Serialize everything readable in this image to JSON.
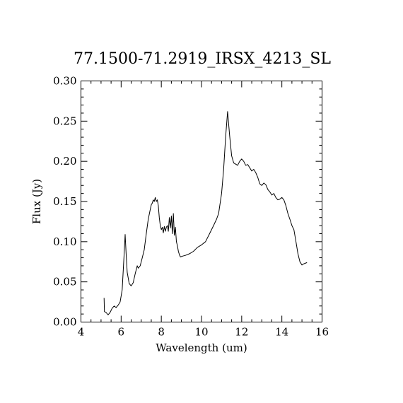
{
  "chart_data": {
    "type": "line",
    "title": "77.1500-71.2919_IRSX_4213_SL",
    "xlabel": "Wavelength (um)",
    "ylabel": "Flux (Jy)",
    "xlim": [
      4,
      16
    ],
    "ylim": [
      0,
      0.3
    ],
    "xticks": [
      4,
      6,
      8,
      10,
      12,
      14,
      16
    ],
    "xtick_labels": [
      "4",
      "6",
      "8",
      "10",
      "12",
      "14",
      "16"
    ],
    "yticks": [
      0.0,
      0.05,
      0.1,
      0.15,
      0.2,
      0.25,
      0.3
    ],
    "ytick_labels": [
      "0.00",
      "0.05",
      "0.10",
      "0.15",
      "0.20",
      "0.25",
      "0.30"
    ],
    "grid": false,
    "series": [
      {
        "x": [
          5.15,
          5.17,
          5.25,
          5.35,
          5.45,
          5.55,
          5.65,
          5.75,
          5.85,
          5.95,
          6.05,
          6.15,
          6.2,
          6.25,
          6.3,
          6.4,
          6.5,
          6.6,
          6.7,
          6.8,
          6.85,
          6.95,
          7.05,
          7.15,
          7.25,
          7.35,
          7.45,
          7.5,
          7.55,
          7.6,
          7.65,
          7.7,
          7.75,
          7.8,
          7.85,
          7.9,
          7.95,
          8.0,
          8.05,
          8.1,
          8.15,
          8.2,
          8.25,
          8.3,
          8.35,
          8.4,
          8.45,
          8.5,
          8.55,
          8.6,
          8.65,
          8.7,
          8.75,
          8.8,
          8.85,
          8.9,
          8.95,
          9.05,
          9.2,
          9.4,
          9.6,
          9.8,
          10.0,
          10.2,
          10.4,
          10.6,
          10.75,
          10.85,
          11.0,
          11.1,
          11.2,
          11.3,
          11.4,
          11.5,
          11.6,
          11.8,
          11.9,
          12.0,
          12.1,
          12.2,
          12.3,
          12.4,
          12.5,
          12.6,
          12.7,
          12.8,
          12.9,
          13.0,
          13.1,
          13.2,
          13.3,
          13.4,
          13.5,
          13.6,
          13.7,
          13.8,
          13.9,
          14.0,
          14.1,
          14.2,
          14.3,
          14.4,
          14.5,
          14.6,
          14.7,
          14.8,
          14.9,
          15.0,
          15.05,
          15.15,
          15.25
        ],
        "y": [
          0.03,
          0.013,
          0.012,
          0.009,
          0.012,
          0.017,
          0.02,
          0.018,
          0.021,
          0.025,
          0.04,
          0.085,
          0.109,
          0.085,
          0.062,
          0.048,
          0.045,
          0.049,
          0.06,
          0.07,
          0.067,
          0.07,
          0.08,
          0.09,
          0.11,
          0.128,
          0.14,
          0.146,
          0.148,
          0.152,
          0.15,
          0.155,
          0.15,
          0.152,
          0.145,
          0.13,
          0.12,
          0.115,
          0.118,
          0.111,
          0.119,
          0.113,
          0.118,
          0.12,
          0.113,
          0.13,
          0.117,
          0.132,
          0.11,
          0.135,
          0.108,
          0.118,
          0.1,
          0.095,
          0.088,
          0.084,
          0.081,
          0.082,
          0.083,
          0.085,
          0.088,
          0.093,
          0.096,
          0.1,
          0.11,
          0.12,
          0.128,
          0.135,
          0.16,
          0.19,
          0.23,
          0.262,
          0.232,
          0.207,
          0.198,
          0.195,
          0.2,
          0.203,
          0.2,
          0.195,
          0.196,
          0.192,
          0.188,
          0.19,
          0.186,
          0.18,
          0.172,
          0.17,
          0.173,
          0.171,
          0.165,
          0.162,
          0.158,
          0.16,
          0.155,
          0.152,
          0.153,
          0.155,
          0.152,
          0.145,
          0.135,
          0.128,
          0.12,
          0.115,
          0.1,
          0.085,
          0.075,
          0.071,
          0.072,
          0.073,
          0.074
        ]
      }
    ]
  }
}
